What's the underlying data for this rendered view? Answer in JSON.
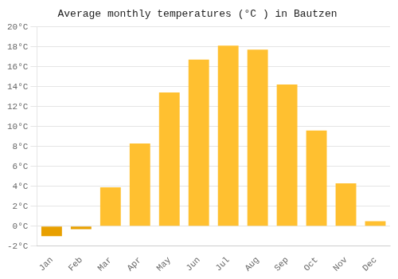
{
  "chart_data": {
    "type": "bar",
    "title": "Average monthly temperatures (°C ) in Bautzen",
    "categories": [
      "Jan",
      "Feb",
      "Mar",
      "Apr",
      "May",
      "Jun",
      "Jul",
      "Aug",
      "Sep",
      "Oct",
      "Nov",
      "Dec"
    ],
    "values": [
      -1.0,
      -0.3,
      3.9,
      8.3,
      13.4,
      16.7,
      18.1,
      17.7,
      14.2,
      9.6,
      4.3,
      0.5
    ],
    "colors": [
      "#E8A000",
      "#E8A000",
      "#FFC030",
      "#FFC030",
      "#FFC030",
      "#FFC030",
      "#FFC030",
      "#FFC030",
      "#FFC030",
      "#FFC030",
      "#FFC030",
      "#FFC030"
    ],
    "ylim": [
      -2,
      20
    ],
    "yticks": [
      {
        "value": -2,
        "label": "-2°C"
      },
      {
        "value": 0,
        "label": "0°C"
      },
      {
        "value": 2,
        "label": "2°C"
      },
      {
        "value": 4,
        "label": "4°C"
      },
      {
        "value": 6,
        "label": "6°C"
      },
      {
        "value": 8,
        "label": "8°C"
      },
      {
        "value": 10,
        "label": "10°C"
      },
      {
        "value": 12,
        "label": "12°C"
      },
      {
        "value": 14,
        "label": "14°C"
      },
      {
        "value": 16,
        "label": "16°C"
      },
      {
        "value": 18,
        "label": "18°C"
      },
      {
        "value": 20,
        "label": "20°C"
      }
    ],
    "grid": true
  }
}
